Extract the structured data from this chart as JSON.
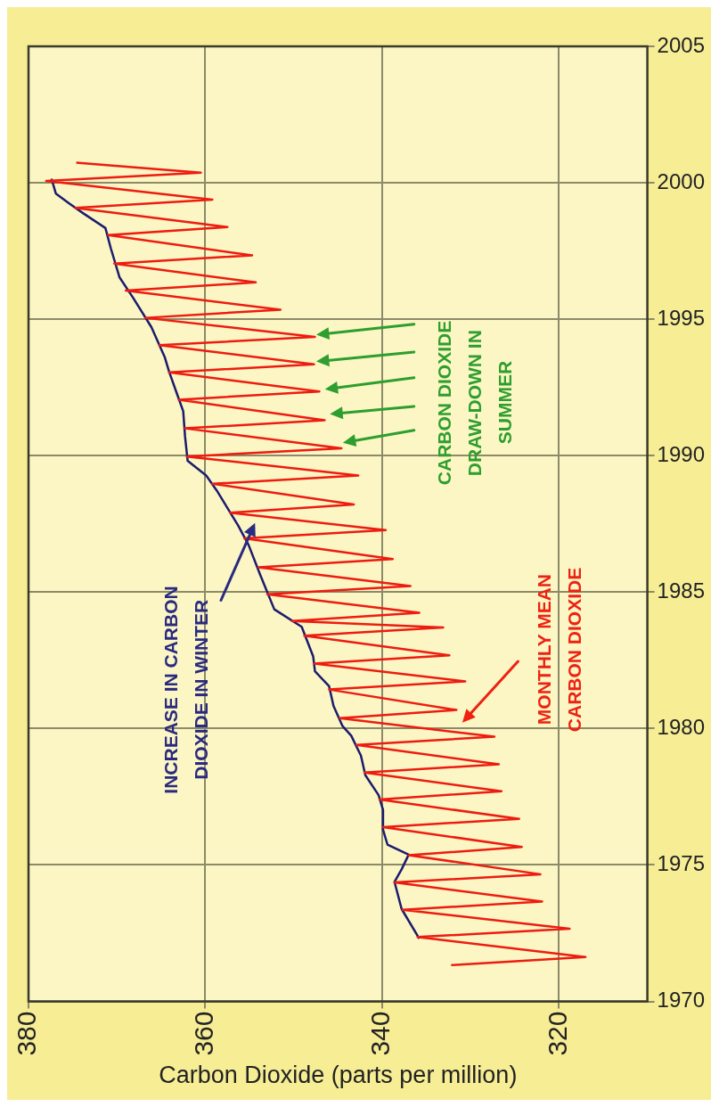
{
  "chart_data": {
    "type": "line",
    "xlabel": "Carbon Dioxide (parts per million)",
    "xlim": [
      380,
      310
    ],
    "xticks": [
      380,
      360,
      340,
      320
    ],
    "ylim": [
      1970,
      2005
    ],
    "yticks": [
      1970,
      1975,
      1980,
      1985,
      1990,
      1995,
      2000,
      2005
    ],
    "grid": true,
    "marker": "none",
    "line_style": "solid",
    "series": [
      {
        "color": "#ee1c10",
        "x": [
          332.2,
          317.0,
          336.0,
          318.8,
          337.7,
          321.9,
          338.6,
          322.1,
          337.0,
          324.2,
          339.9,
          324.5,
          340.3,
          326.5,
          342.0,
          326.8,
          342.9,
          327.3,
          344.8,
          331.6,
          346.0,
          330.6,
          347.7,
          332.4,
          348.8,
          333.1,
          350.2,
          335.8,
          353.0,
          336.8,
          354.0,
          338.8,
          355.6,
          339.6,
          357.2,
          343.2,
          359.2,
          342.7,
          362.1,
          344.6,
          362.3,
          346.5,
          363.0,
          347.1,
          364.1,
          347.7,
          365.2,
          347.6,
          366.8,
          351.5,
          369.0,
          354.3,
          370.3,
          354.7,
          371.0,
          357.5,
          374.7,
          359.2,
          378.0,
          360.5,
          374.6
        ],
        "values": [
          1971.33,
          1971.63,
          1972.36,
          1972.66,
          1973.36,
          1973.66,
          1974.36,
          1974.66,
          1975.36,
          1975.66,
          1976.39,
          1976.69,
          1977.4,
          1977.7,
          1978.39,
          1978.69,
          1979.4,
          1979.7,
          1980.38,
          1980.68,
          1981.43,
          1981.73,
          1982.38,
          1982.68,
          1983.4,
          1983.7,
          1983.94,
          1984.24,
          1984.92,
          1985.22,
          1985.91,
          1986.21,
          1986.97,
          1987.27,
          1987.91,
          1988.21,
          1988.97,
          1989.27,
          1989.97,
          1990.27,
          1991.0,
          1991.3,
          1992.05,
          1992.35,
          1993.05,
          1993.35,
          1994.05,
          1994.35,
          1995.05,
          1995.35,
          1996.05,
          1996.35,
          1997.04,
          1997.34,
          1998.08,
          1998.38,
          1999.08,
          1999.38,
          2000.07,
          2000.37,
          2000.74
        ]
      },
      {
        "color": "#1c1c6e",
        "x": [
          335.8,
          337.8,
          338.6,
          337.8,
          337.0,
          339.4,
          339.9,
          339.9,
          340.4,
          341.9,
          342.4,
          343.5,
          344.5,
          345.5,
          346.0,
          347.6,
          347.8,
          349.1,
          352.2,
          353.8,
          355.1,
          356.3,
          358.7,
          359.9,
          362.0,
          362.3,
          362.5,
          363.3,
          364.1,
          364.6,
          366.1,
          368.2,
          369.7,
          370.7,
          371.3,
          373.8,
          375.4,
          376.9,
          377.4
        ],
        "values": [
          1972.3,
          1973.39,
          1974.38,
          1974.84,
          1975.38,
          1975.75,
          1976.29,
          1977.02,
          1977.56,
          1978.29,
          1979.01,
          1979.74,
          1980.1,
          1980.83,
          1981.55,
          1982.1,
          1982.64,
          1983.73,
          1984.37,
          1985.64,
          1986.72,
          1987.45,
          1988.72,
          1989.27,
          1989.81,
          1990.72,
          1991.63,
          1992.35,
          1993.08,
          1993.62,
          1994.71,
          1995.8,
          1996.53,
          1997.61,
          1998.34,
          1998.88,
          1999.24,
          1999.6,
          2000.15
        ]
      }
    ],
    "annotations": [
      "INCREASE IN CARBON\nDIOXIDE IN WINTER",
      "MONTHLY MEAN\nCARBON DIOXIDE",
      "CARBON DIOXIDE\nDRAW-DOWN IN\nSUMMER"
    ]
  }
}
